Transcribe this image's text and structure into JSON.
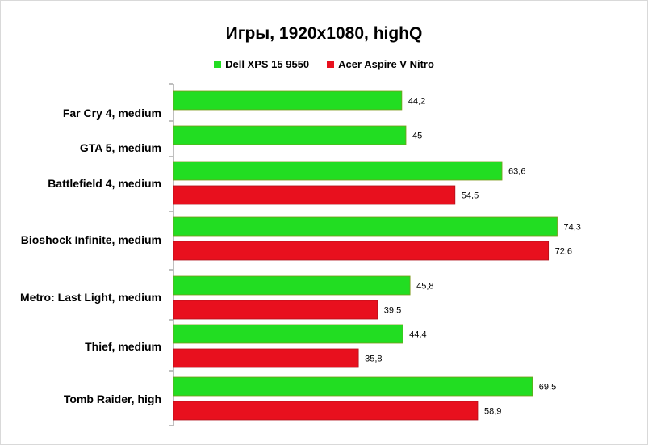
{
  "chart_data": {
    "type": "bar",
    "title": "Игры, 1920x1080, highQ",
    "categories": [
      "Far Cry 4, medium",
      "GTA 5, medium",
      "Battlefield 4, medium",
      "Bioshock Infinite, medium",
      "Metro: Last Light,  medium",
      "Thief, medium",
      "Tomb Raider, high"
    ],
    "series": [
      {
        "name": "Dell XPS 15 9550",
        "color": "#22dd22",
        "values": [
          44.2,
          45,
          63.6,
          74.3,
          45.8,
          44.4,
          69.5
        ]
      },
      {
        "name": "Acer Aspire V Nitro",
        "color": "#e8101e",
        "values": [
          null,
          null,
          54.5,
          72.6,
          39.5,
          35.8,
          58.9
        ]
      }
    ],
    "value_labels": {
      "series0": [
        "44,2",
        "45",
        "63,6",
        "74,3",
        "45,8",
        "44,4",
        "69,5"
      ],
      "series1": [
        null,
        null,
        "54,5",
        "72,6",
        "39,5",
        "35,8",
        "58,9"
      ]
    },
    "orientation": "horizontal",
    "legend_position": "top",
    "grid": false
  }
}
